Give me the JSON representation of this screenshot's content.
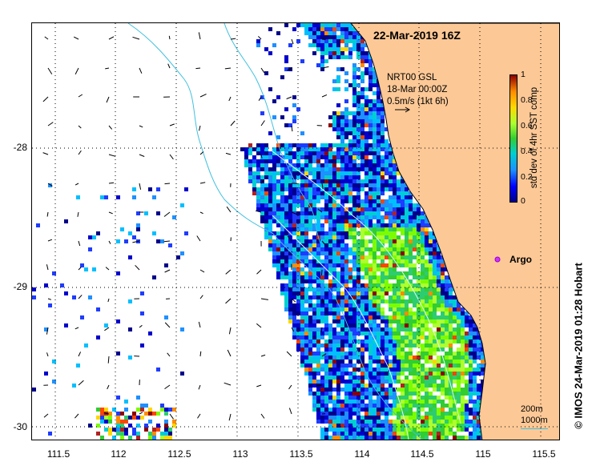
{
  "map": {
    "title": "22-Mar-2019 16Z",
    "legend": {
      "line1": "NRT00 GSL",
      "line2": "18-Mar 00:00Z",
      "line3": "0.5m/s (1kt 6h)"
    },
    "colorbar": {
      "title": "std dev of 4hr SST comp",
      "ticks": [
        "0",
        "0.2",
        "0.4",
        "0.6",
        "0.8",
        "1"
      ]
    },
    "argo_label": "Argo",
    "scale": {
      "line1": "200m",
      "line2": "1000m"
    },
    "copyright": "© IMOS 24-Mar-2019 01:28 Hobart",
    "lat_labels": [
      "-28",
      "-29",
      "-30"
    ],
    "lon_labels": [
      "111.5",
      "112",
      "112.5",
      "113",
      "113.5",
      "114",
      "114.5",
      "115",
      "115.5"
    ],
    "colors": {
      "land": "#fcc896",
      "coast": "#000000",
      "shelf_contour": "#40c0e0",
      "argo": "#cc33ff"
    }
  }
}
